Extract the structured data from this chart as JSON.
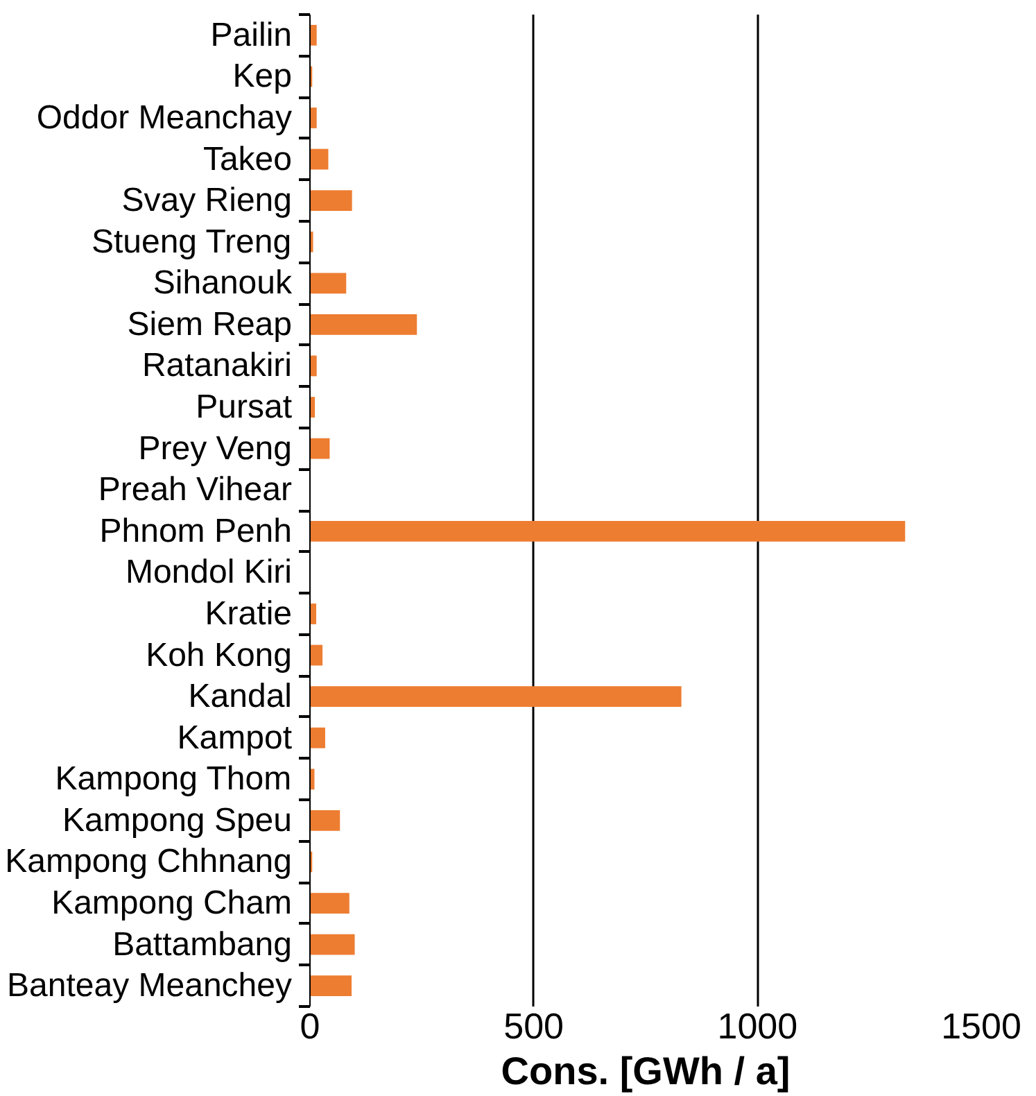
{
  "chart_data": {
    "type": "bar",
    "orientation": "horizontal",
    "xlabel": "Cons. [GWh / a]",
    "categories": [
      "Pailin",
      "Kep",
      "Oddor Meanchay",
      "Takeo",
      "Svay Rieng",
      "Stueng Treng",
      "Sihanouk",
      "Siem Reap",
      "Ratanakiri",
      "Pursat",
      "Prey Veng",
      "Preah Vihear",
      "Phnom Penh",
      "Mondol Kiri",
      "Kratie",
      "Koh Kong",
      "Kandal",
      "Kampot",
      "Kampong Thom",
      "Kampong Speu",
      "Kampong Chhnang",
      "Kampong Cham",
      "Battambang",
      "Banteay Meanchey"
    ],
    "values": [
      15,
      5,
      15,
      41,
      94,
      7,
      81,
      239,
      15,
      11,
      44,
      0,
      1330,
      0,
      14,
      28,
      830,
      34,
      10,
      67,
      5,
      88,
      100,
      93
    ],
    "color": "#ed7d31",
    "xlim": [
      0,
      1500
    ],
    "xticks": [
      0,
      500,
      1000,
      1500
    ],
    "grid": "x"
  }
}
